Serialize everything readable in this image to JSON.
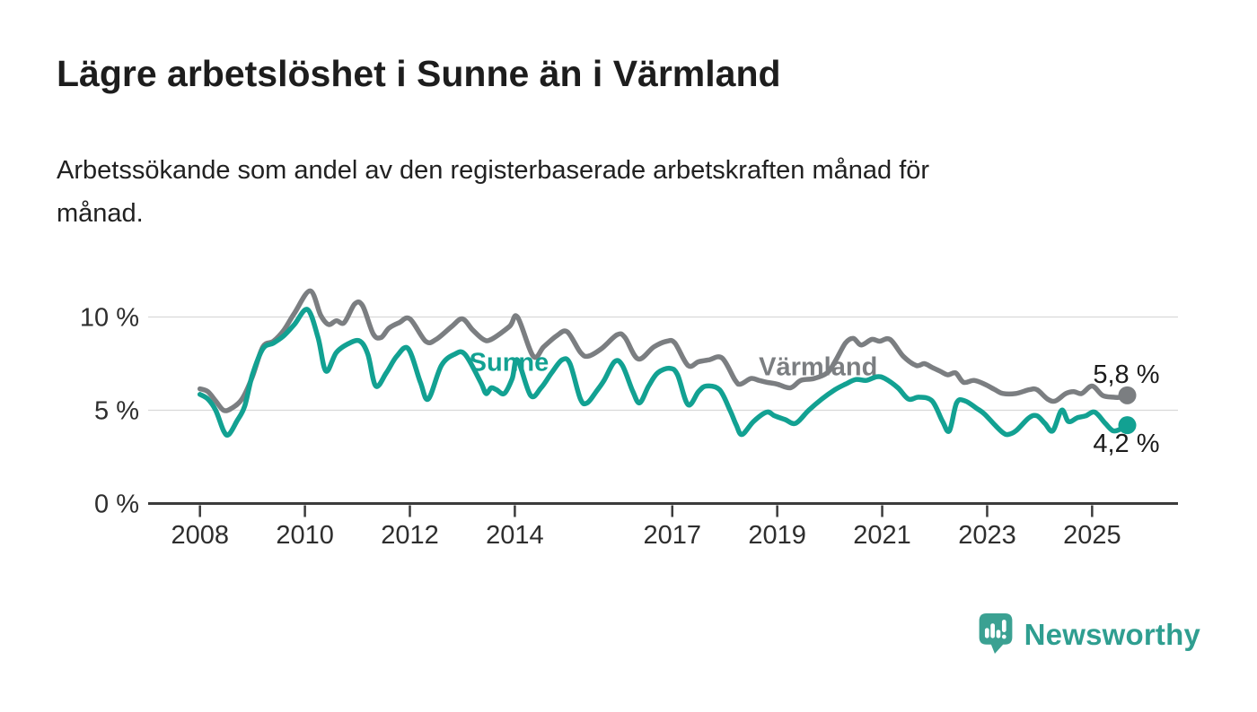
{
  "title": "Lägre arbetslöshet i Sunne än i Värmland",
  "subtitle_lines": [
    "Arbetssökande som andel av den registerbaserade arbetskraften månad för",
    "månad."
  ],
  "colors": {
    "sunne": "#12a192",
    "varmland": "#7b7e81",
    "axis": "#3b3b3b",
    "grid": "#d9d9d9",
    "text": "#1d1d1d",
    "brand_teal": "#2f9e90",
    "brand_icon_teal": "#3ba192"
  },
  "chart_data": {
    "type": "line",
    "unit": "%",
    "ylabel": "",
    "xlabel": "",
    "ylim": [
      0,
      12
    ],
    "grid": "horizontal",
    "x_ticks": [
      {
        "label": "2008",
        "value": 2008
      },
      {
        "label": "2010",
        "value": 2010
      },
      {
        "label": "2012",
        "value": 2012
      },
      {
        "label": "2014",
        "value": 2014
      },
      {
        "label": "2017",
        "value": 2017
      },
      {
        "label": "2019",
        "value": 2019
      },
      {
        "label": "2021",
        "value": 2021
      },
      {
        "label": "2023",
        "value": 2023
      },
      {
        "label": "2025",
        "value": 2025
      }
    ],
    "y_ticks": [
      {
        "label": "0 %",
        "value": 0
      },
      {
        "label": "5 %",
        "value": 5
      },
      {
        "label": "10 %",
        "value": 10
      }
    ],
    "series": [
      {
        "name": "Värmland",
        "color": "#7b7e81",
        "end_value_label": "5,8 %",
        "value_label_position": "above",
        "inline_label": {
          "text": "Värmland",
          "x": 2019.78,
          "y": 7.35
        },
        "points": [
          [
            2008.0,
            6.15
          ],
          [
            2008.15,
            6.0
          ],
          [
            2008.3,
            5.5
          ],
          [
            2008.45,
            5.0
          ],
          [
            2008.6,
            5.1
          ],
          [
            2008.8,
            5.6
          ],
          [
            2009.0,
            6.8
          ],
          [
            2009.2,
            8.4
          ],
          [
            2009.4,
            8.7
          ],
          [
            2009.6,
            9.3
          ],
          [
            2009.8,
            10.2
          ],
          [
            2010.1,
            11.4
          ],
          [
            2010.3,
            10.1
          ],
          [
            2010.45,
            9.6
          ],
          [
            2010.6,
            9.8
          ],
          [
            2010.75,
            9.7
          ],
          [
            2010.95,
            10.7
          ],
          [
            2011.1,
            10.6
          ],
          [
            2011.3,
            9.1
          ],
          [
            2011.45,
            8.9
          ],
          [
            2011.6,
            9.4
          ],
          [
            2011.8,
            9.7
          ],
          [
            2012.0,
            9.9
          ],
          [
            2012.3,
            8.7
          ],
          [
            2012.5,
            8.8
          ],
          [
            2012.8,
            9.5
          ],
          [
            2013.0,
            9.9
          ],
          [
            2013.2,
            9.3
          ],
          [
            2013.4,
            8.8
          ],
          [
            2013.55,
            8.8
          ],
          [
            2013.9,
            9.5
          ],
          [
            2014.05,
            10.0
          ],
          [
            2014.35,
            7.9
          ],
          [
            2014.55,
            8.4
          ],
          [
            2014.8,
            9.0
          ],
          [
            2015.0,
            9.2
          ],
          [
            2015.25,
            8.1
          ],
          [
            2015.4,
            7.9
          ],
          [
            2015.65,
            8.3
          ],
          [
            2015.95,
            9.05
          ],
          [
            2016.1,
            8.9
          ],
          [
            2016.35,
            7.75
          ],
          [
            2016.65,
            8.4
          ],
          [
            2016.9,
            8.7
          ],
          [
            2017.05,
            8.6
          ],
          [
            2017.3,
            7.4
          ],
          [
            2017.5,
            7.6
          ],
          [
            2017.7,
            7.7
          ],
          [
            2017.95,
            7.8
          ],
          [
            2018.2,
            6.6
          ],
          [
            2018.3,
            6.4
          ],
          [
            2018.5,
            6.7
          ],
          [
            2018.65,
            6.6
          ],
          [
            2018.8,
            6.5
          ],
          [
            2019.0,
            6.4
          ],
          [
            2019.25,
            6.2
          ],
          [
            2019.45,
            6.6
          ],
          [
            2019.7,
            6.7
          ],
          [
            2019.95,
            7.0
          ],
          [
            2020.1,
            7.6
          ],
          [
            2020.3,
            8.6
          ],
          [
            2020.45,
            8.85
          ],
          [
            2020.6,
            8.5
          ],
          [
            2020.8,
            8.8
          ],
          [
            2020.95,
            8.7
          ],
          [
            2021.15,
            8.8
          ],
          [
            2021.4,
            7.9
          ],
          [
            2021.65,
            7.4
          ],
          [
            2021.8,
            7.5
          ],
          [
            2021.95,
            7.3
          ],
          [
            2022.1,
            7.1
          ],
          [
            2022.25,
            6.9
          ],
          [
            2022.4,
            7.0
          ],
          [
            2022.55,
            6.5
          ],
          [
            2022.75,
            6.6
          ],
          [
            2022.95,
            6.4
          ],
          [
            2023.15,
            6.1
          ],
          [
            2023.3,
            5.9
          ],
          [
            2023.55,
            5.9
          ],
          [
            2023.8,
            6.1
          ],
          [
            2023.95,
            6.1
          ],
          [
            2024.15,
            5.6
          ],
          [
            2024.3,
            5.5
          ],
          [
            2024.5,
            5.9
          ],
          [
            2024.65,
            6.0
          ],
          [
            2024.8,
            5.9
          ],
          [
            2025.0,
            6.3
          ],
          [
            2025.2,
            5.8
          ],
          [
            2025.4,
            5.7
          ],
          [
            2025.55,
            5.7
          ],
          [
            2025.67,
            5.8
          ]
        ]
      },
      {
        "name": "Sunne",
        "color": "#12a192",
        "end_value_label": "4,2 %",
        "value_label_position": "below",
        "inline_label": {
          "text": "Sunne",
          "x": 2013.89,
          "y": 7.6
        },
        "points": [
          [
            2008.0,
            5.85
          ],
          [
            2008.15,
            5.6
          ],
          [
            2008.3,
            5.0
          ],
          [
            2008.45,
            3.9
          ],
          [
            2008.55,
            3.7
          ],
          [
            2008.7,
            4.4
          ],
          [
            2008.85,
            5.2
          ],
          [
            2009.0,
            6.9
          ],
          [
            2009.2,
            8.3
          ],
          [
            2009.4,
            8.6
          ],
          [
            2009.6,
            9.0
          ],
          [
            2009.8,
            9.6
          ],
          [
            2010.05,
            10.4
          ],
          [
            2010.25,
            8.9
          ],
          [
            2010.4,
            7.1
          ],
          [
            2010.6,
            8.1
          ],
          [
            2010.85,
            8.6
          ],
          [
            2011.05,
            8.7
          ],
          [
            2011.2,
            8.0
          ],
          [
            2011.35,
            6.3
          ],
          [
            2011.55,
            7.0
          ],
          [
            2011.75,
            7.9
          ],
          [
            2011.97,
            8.3
          ],
          [
            2012.2,
            6.5
          ],
          [
            2012.35,
            5.6
          ],
          [
            2012.6,
            7.4
          ],
          [
            2012.85,
            8.0
          ],
          [
            2013.05,
            8.0
          ],
          [
            2013.35,
            6.5
          ],
          [
            2013.45,
            5.9
          ],
          [
            2013.55,
            6.2
          ],
          [
            2013.65,
            6.1
          ],
          [
            2013.8,
            5.9
          ],
          [
            2013.95,
            6.7
          ],
          [
            2014.05,
            7.7
          ],
          [
            2014.3,
            5.8
          ],
          [
            2014.5,
            6.2
          ],
          [
            2014.7,
            7.0
          ],
          [
            2014.9,
            7.7
          ],
          [
            2015.05,
            7.5
          ],
          [
            2015.25,
            5.6
          ],
          [
            2015.38,
            5.4
          ],
          [
            2015.55,
            6.0
          ],
          [
            2015.7,
            6.6
          ],
          [
            2015.9,
            7.6
          ],
          [
            2016.05,
            7.4
          ],
          [
            2016.25,
            6.0
          ],
          [
            2016.38,
            5.4
          ],
          [
            2016.55,
            6.3
          ],
          [
            2016.72,
            7.0
          ],
          [
            2016.95,
            7.25
          ],
          [
            2017.1,
            6.9
          ],
          [
            2017.3,
            5.3
          ],
          [
            2017.5,
            6.0
          ],
          [
            2017.65,
            6.3
          ],
          [
            2017.9,
            6.1
          ],
          [
            2018.1,
            5.0
          ],
          [
            2018.22,
            4.2
          ],
          [
            2018.33,
            3.7
          ],
          [
            2018.55,
            4.4
          ],
          [
            2018.8,
            4.9
          ],
          [
            2018.95,
            4.7
          ],
          [
            2019.15,
            4.5
          ],
          [
            2019.35,
            4.3
          ],
          [
            2019.6,
            5.0
          ],
          [
            2019.85,
            5.6
          ],
          [
            2020.1,
            6.1
          ],
          [
            2020.3,
            6.4
          ],
          [
            2020.5,
            6.65
          ],
          [
            2020.7,
            6.6
          ],
          [
            2020.9,
            6.8
          ],
          [
            2021.05,
            6.7
          ],
          [
            2021.3,
            6.2
          ],
          [
            2021.5,
            5.6
          ],
          [
            2021.7,
            5.7
          ],
          [
            2021.95,
            5.5
          ],
          [
            2022.15,
            4.4
          ],
          [
            2022.28,
            3.9
          ],
          [
            2022.42,
            5.4
          ],
          [
            2022.58,
            5.5
          ],
          [
            2022.8,
            5.1
          ],
          [
            2022.95,
            4.8
          ],
          [
            2023.15,
            4.2
          ],
          [
            2023.3,
            3.8
          ],
          [
            2023.4,
            3.7
          ],
          [
            2023.55,
            3.9
          ],
          [
            2023.8,
            4.6
          ],
          [
            2023.95,
            4.7
          ],
          [
            2024.1,
            4.3
          ],
          [
            2024.25,
            3.9
          ],
          [
            2024.42,
            5.0
          ],
          [
            2024.55,
            4.4
          ],
          [
            2024.72,
            4.6
          ],
          [
            2024.88,
            4.7
          ],
          [
            2025.05,
            4.9
          ],
          [
            2025.25,
            4.3
          ],
          [
            2025.4,
            3.9
          ],
          [
            2025.55,
            4.0
          ],
          [
            2025.67,
            4.2
          ]
        ]
      }
    ]
  },
  "footer": {
    "brand": "Newsworthy"
  }
}
